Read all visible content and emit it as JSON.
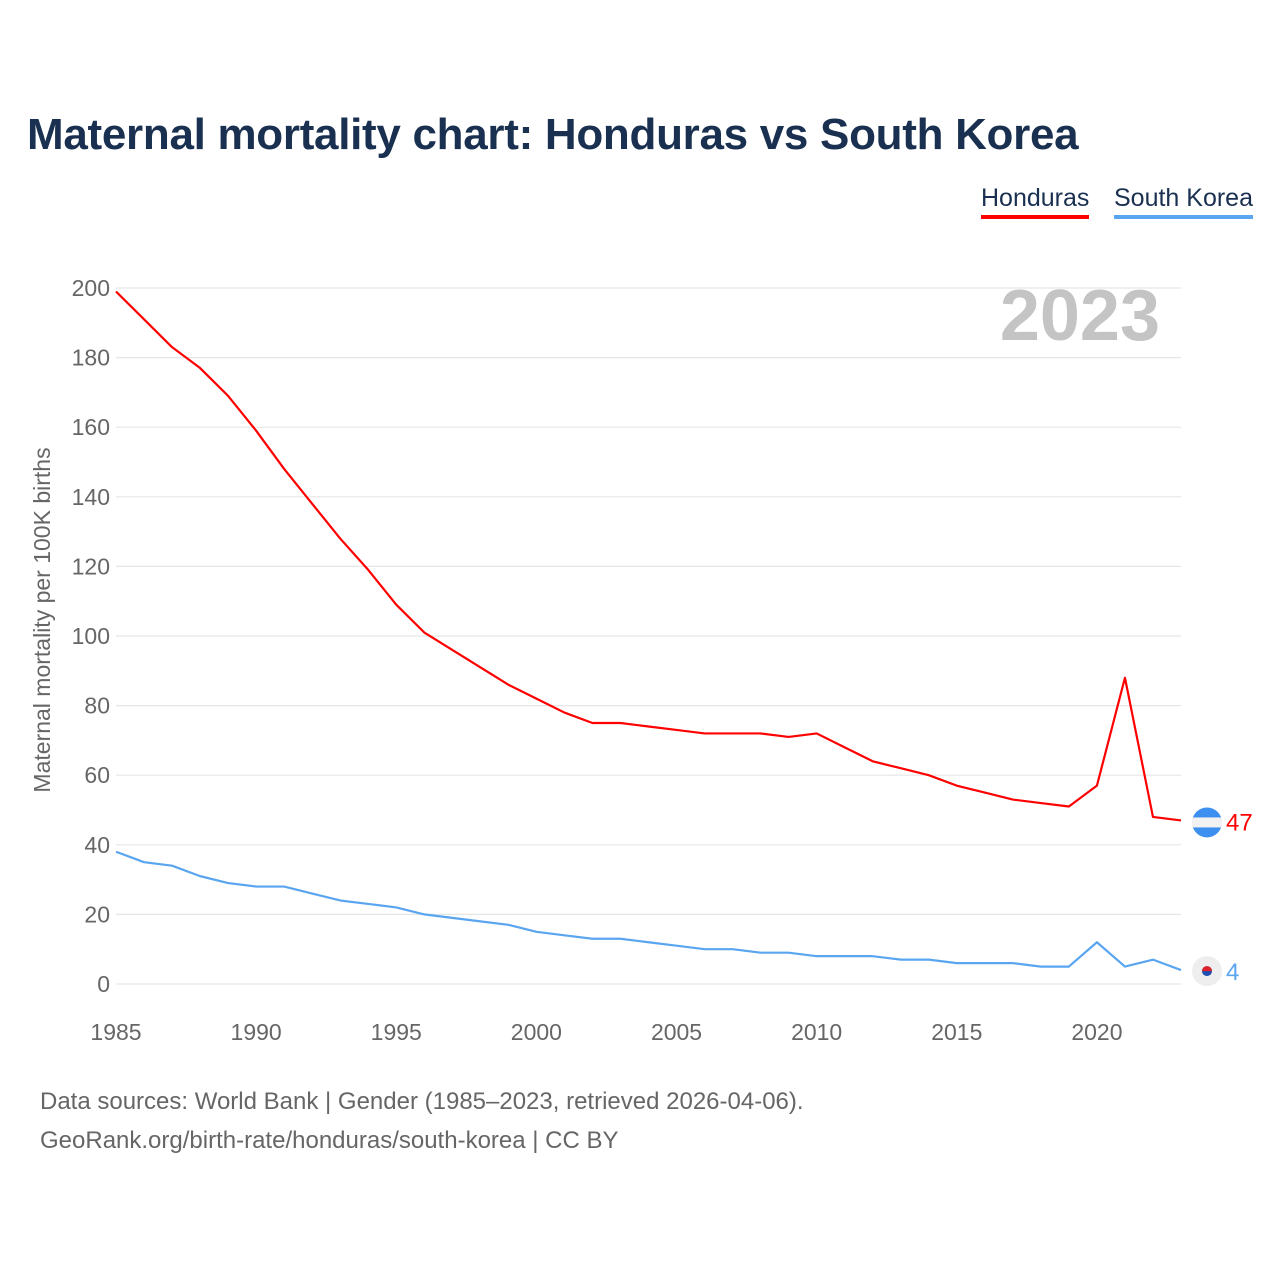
{
  "title": "Maternal mortality chart: Honduras vs South Korea",
  "legend": [
    {
      "label": "Honduras",
      "color": "#ff0000"
    },
    {
      "label": "South Korea",
      "color": "#5aa5f0"
    }
  ],
  "footer": {
    "line1": "Data sources: World Bank | Gender (1985–2023, retrieved 2026-04-06).",
    "line2": "GeoRank.org/birth-rate/honduras/south-korea | CC BY"
  },
  "chart_data": {
    "type": "line",
    "title": "Maternal mortality chart: Honduras vs South Korea",
    "ylabel": "Maternal mortality per 100K births",
    "xlabel": "",
    "year_watermark": "2023",
    "xlim": [
      1985,
      2023
    ],
    "ylim": [
      0,
      200
    ],
    "xticks": [
      1985,
      1990,
      1995,
      2000,
      2005,
      2010,
      2015,
      2020
    ],
    "yticks": [
      0,
      20,
      40,
      60,
      80,
      100,
      120,
      140,
      160,
      180,
      200
    ],
    "grid": true,
    "legend_position": "top-right",
    "x": [
      1985,
      1986,
      1987,
      1988,
      1989,
      1990,
      1991,
      1992,
      1993,
      1994,
      1995,
      1996,
      1997,
      1998,
      1999,
      2000,
      2001,
      2002,
      2003,
      2004,
      2005,
      2006,
      2007,
      2008,
      2009,
      2010,
      2011,
      2012,
      2013,
      2014,
      2015,
      2016,
      2017,
      2018,
      2019,
      2020,
      2021,
      2022,
      2023
    ],
    "series": [
      {
        "name": "Honduras",
        "color": "#ff0000",
        "end_label": "47",
        "values": [
          199,
          191,
          183,
          177,
          169,
          159,
          148,
          138,
          128,
          119,
          109,
          101,
          96,
          91,
          86,
          82,
          78,
          75,
          75,
          74,
          73,
          72,
          72,
          72,
          71,
          72,
          68,
          64,
          62,
          60,
          57,
          55,
          53,
          52,
          51,
          57,
          88,
          48,
          47
        ]
      },
      {
        "name": "South Korea",
        "color": "#5aa5f0",
        "end_label": "4",
        "values": [
          38,
          35,
          34,
          31,
          29,
          28,
          28,
          26,
          24,
          23,
          22,
          20,
          19,
          18,
          17,
          15,
          14,
          13,
          13,
          12,
          11,
          10,
          10,
          9,
          9,
          8,
          8,
          8,
          7,
          7,
          6,
          6,
          6,
          5,
          5,
          12,
          5,
          7,
          4
        ]
      }
    ]
  }
}
